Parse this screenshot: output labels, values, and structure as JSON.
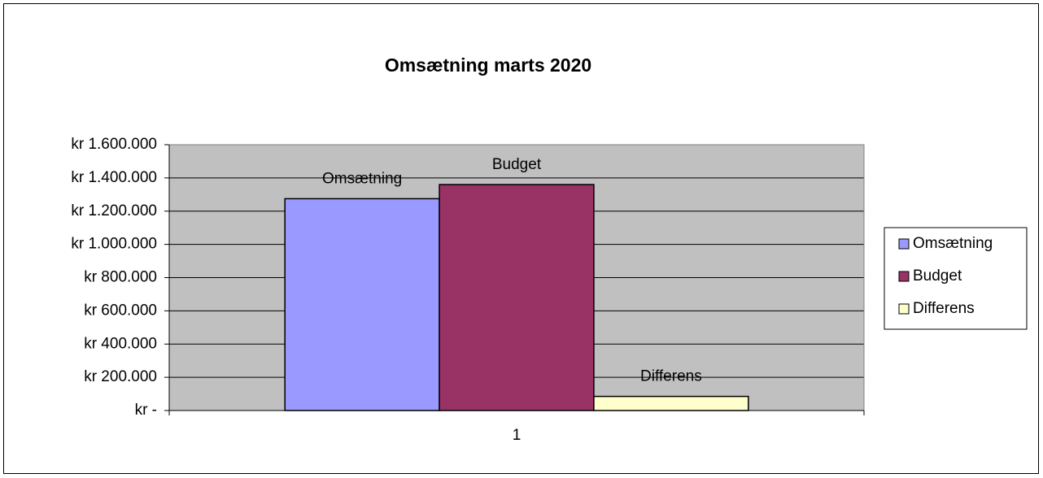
{
  "chart_data": {
    "type": "bar",
    "title": "Omsætning marts 2020",
    "categories": [
      "1"
    ],
    "series": [
      {
        "name": "Omsætning",
        "color": "#9999ff",
        "values": [
          1275000
        ]
      },
      {
        "name": "Budget",
        "color": "#993366",
        "values": [
          1360000
        ]
      },
      {
        "name": "Differens",
        "color": "#ffffcc",
        "values": [
          85000
        ]
      }
    ],
    "ylim": [
      0,
      1600000
    ],
    "yticks": [
      {
        "value": 0,
        "label": "kr -"
      },
      {
        "value": 200000,
        "label": "kr 200.000"
      },
      {
        "value": 400000,
        "label": "kr 400.000"
      },
      {
        "value": 600000,
        "label": "kr 600.000"
      },
      {
        "value": 800000,
        "label": "kr 800.000"
      },
      {
        "value": 1000000,
        "label": "kr 1.000.000"
      },
      {
        "value": 1200000,
        "label": "kr 1.200.000"
      },
      {
        "value": 1400000,
        "label": "kr 1.400.000"
      },
      {
        "value": 1600000,
        "label": "kr 1.600.000"
      }
    ],
    "grid": true,
    "legend": "right",
    "plot_background": "#c0c0c0"
  }
}
